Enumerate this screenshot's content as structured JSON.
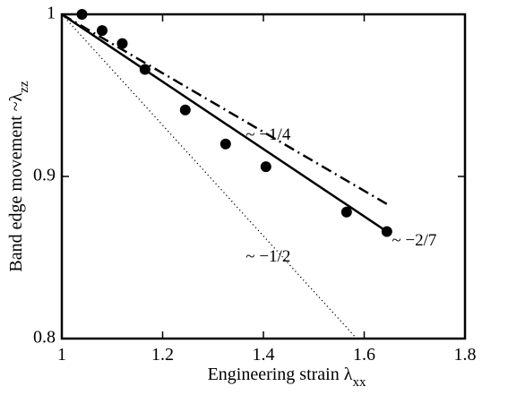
{
  "chart_data": {
    "type": "line",
    "title": "",
    "xlabel": {
      "main": "Engineering strain λ",
      "subscript": "xx"
    },
    "ylabel": {
      "main": "Band edge movement ~λ",
      "subscript": "zz"
    },
    "xlim": [
      1,
      1.8
    ],
    "ylim": [
      0.8,
      1.0
    ],
    "xticks": [
      1,
      1.2,
      1.4,
      1.6,
      1.8
    ],
    "yticks": [
      0.8,
      0.9,
      1.0
    ],
    "xtick_labels": [
      "1",
      "1.2",
      "1.4",
      "1.6",
      "1.8"
    ],
    "ytick_labels": [
      "0.8",
      "0.9",
      "1"
    ],
    "grid": false,
    "legend": false,
    "scatter": {
      "marker": "filled-circle",
      "color": "#000000",
      "points": [
        {
          "x": 1.04,
          "y": 1.0
        },
        {
          "x": 1.08,
          "y": 0.99
        },
        {
          "x": 1.12,
          "y": 0.982
        },
        {
          "x": 1.165,
          "y": 0.966
        },
        {
          "x": 1.245,
          "y": 0.941
        },
        {
          "x": 1.325,
          "y": 0.92
        },
        {
          "x": 1.405,
          "y": 0.906
        },
        {
          "x": 1.565,
          "y": 0.878
        },
        {
          "x": 1.645,
          "y": 0.866
        }
      ]
    },
    "series": [
      {
        "style": "solid",
        "color": "#000000",
        "x": [
          1.0,
          1.645
        ],
        "y": [
          1.0,
          0.866
        ]
      },
      {
        "style": "dashdot",
        "color": "#000000",
        "x": [
          1.0,
          1.645
        ],
        "y": [
          1.0,
          0.883
        ]
      },
      {
        "style": "dotted",
        "color": "#000000",
        "x": [
          1.0,
          1.585
        ],
        "y": [
          1.0,
          0.8
        ]
      }
    ],
    "annotations": [
      {
        "text": "~ −1/4",
        "x": 1.365,
        "y": 0.925
      },
      {
        "text": "~ −1/2",
        "x": 1.365,
        "y": 0.85
      },
      {
        "text": "~ −2/7",
        "x": 1.655,
        "y": 0.86
      }
    ]
  }
}
